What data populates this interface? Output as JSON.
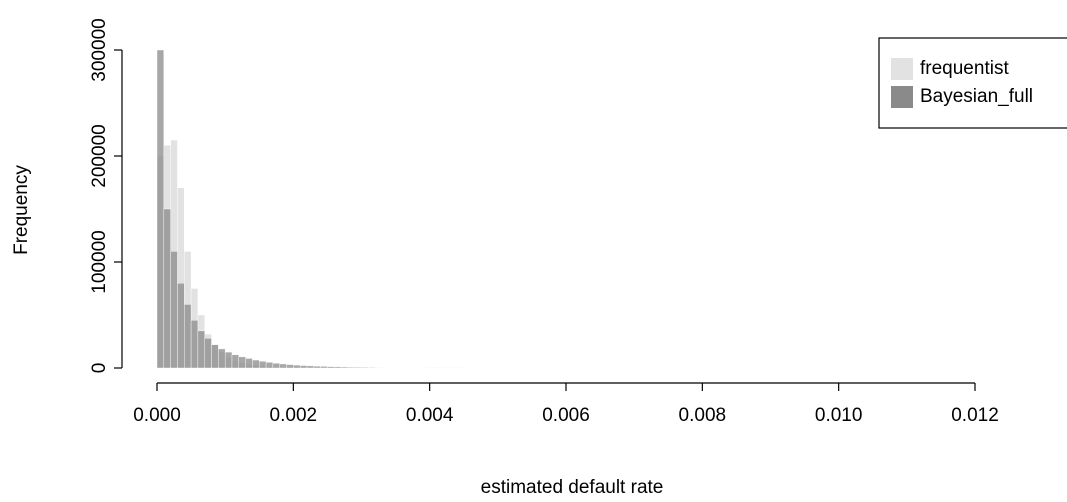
{
  "chart_data": {
    "type": "histogram",
    "x_label": "estimated default rate",
    "y_label": "Frequency",
    "bins": [
      0,
      0.0001,
      0.0002,
      0.0003,
      0.0004,
      0.0005,
      0.0006,
      0.0007,
      0.0008,
      0.0009,
      0.001,
      0.0011,
      0.0012,
      0.0013,
      0.0014,
      0.0015,
      0.0016,
      0.0017,
      0.0018,
      0.0019,
      0.002,
      0.0021,
      0.0022,
      0.0023,
      0.0024,
      0.0025,
      0.0026,
      0.0027,
      0.0028,
      0.0029,
      0.003,
      0.0031,
      0.0032,
      0.0033,
      0.0034,
      0.0035,
      0.0036,
      0.0037,
      0.0038,
      0.0039,
      0.004,
      0.0041,
      0.0042,
      0.0043,
      0.0044,
      0.0045,
      0.01335
    ],
    "series": [
      {
        "name": "frequentist",
        "color": "#e2e2e2",
        "values": [
          200000,
          210000,
          215000,
          170000,
          110000,
          75000,
          50000,
          32000,
          22000,
          15000,
          10000,
          7000,
          5000,
          3500,
          2500,
          1800,
          1300,
          900,
          600,
          400,
          300,
          200,
          150,
          100,
          80,
          60,
          50,
          40,
          30,
          25,
          20,
          15,
          12,
          10,
          8,
          6,
          5,
          4,
          3,
          2,
          2,
          1,
          1,
          1,
          1,
          0
        ]
      },
      {
        "name": "Bayesian_full",
        "color": "#8a8a8a",
        "values": [
          300000,
          150000,
          110000,
          80000,
          60000,
          45000,
          35000,
          28000,
          22000,
          18000,
          15000,
          12500,
          10500,
          9000,
          7500,
          6300,
          5300,
          4500,
          3800,
          3200,
          2700,
          2300,
          2000,
          1700,
          1500,
          1300,
          1100,
          950,
          800,
          700,
          600,
          520,
          450,
          390,
          340,
          300,
          260,
          230,
          200,
          170,
          150,
          130,
          110,
          95,
          80,
          300
        ]
      }
    ],
    "xlim": [
      0,
      0.01335
    ],
    "xticks": [
      {
        "value": 0,
        "label": "0.000"
      },
      0.002,
      0.004,
      0.006,
      0.008,
      {
        "value": 0.01,
        "label": "0.010"
      },
      0.012
    ],
    "ylim": [
      0,
      300000
    ],
    "yticks": [
      0,
      100000,
      200000,
      300000
    ],
    "legend": "topright"
  }
}
